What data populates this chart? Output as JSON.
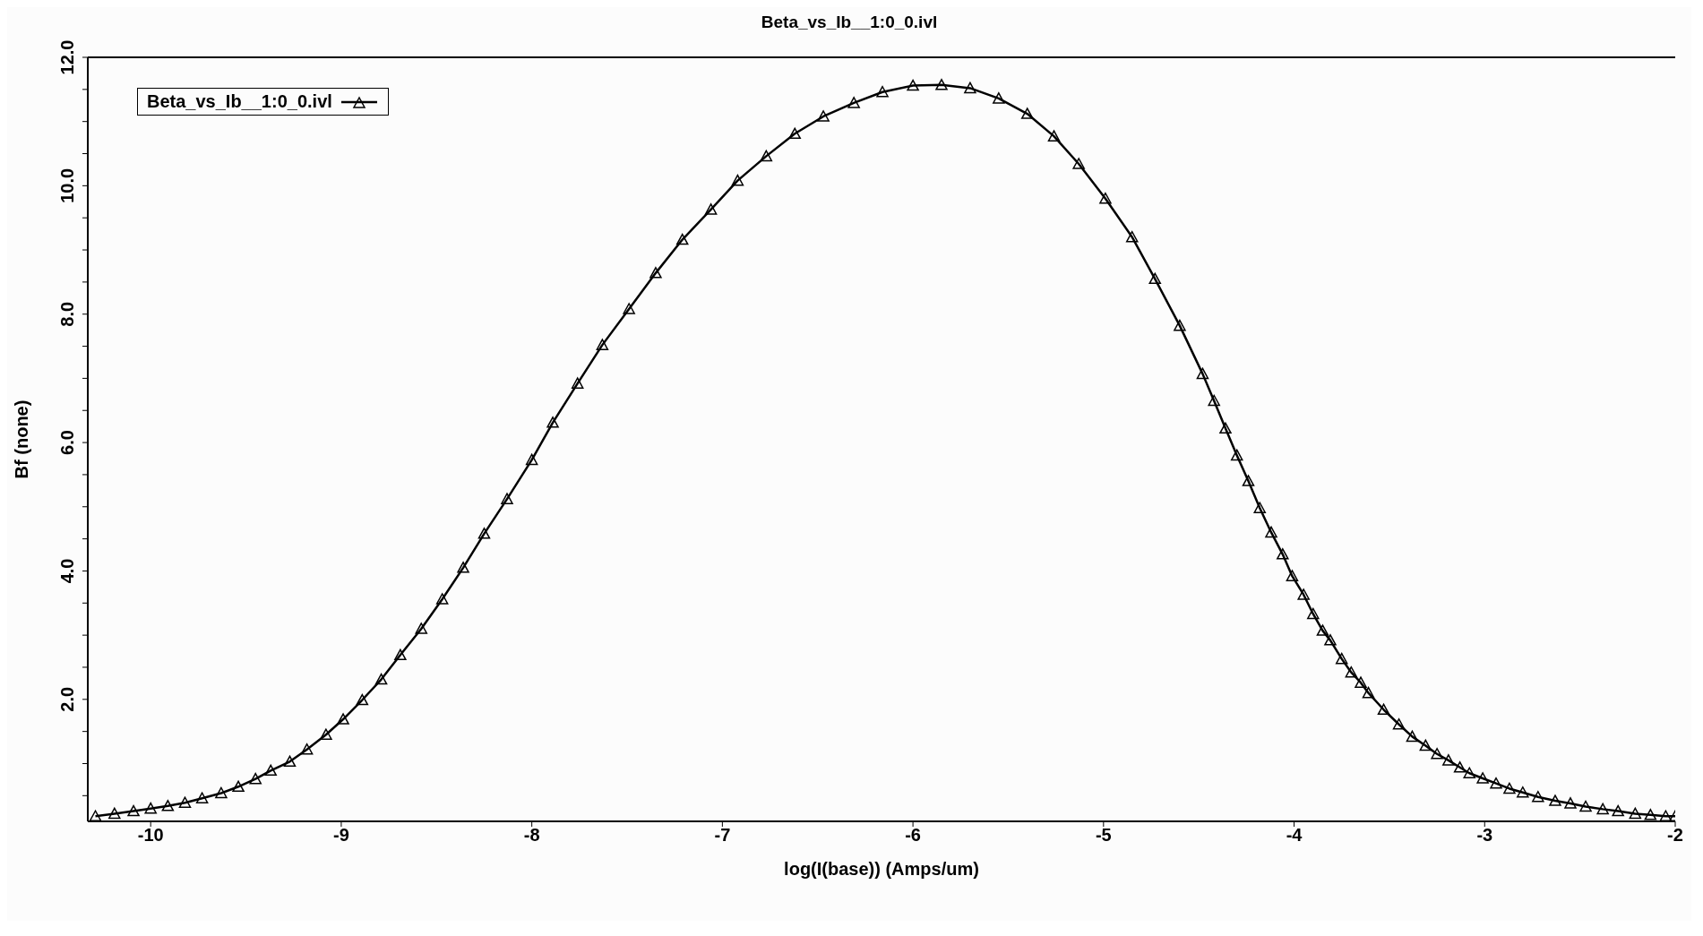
{
  "chart_data": {
    "type": "line",
    "title": "Beta_vs_Ib__1:0_0.ivl",
    "xlabel": "log(I(base)) (Amps/um)",
    "ylabel": "Bf (none)",
    "xlim": [
      -10.33,
      -2
    ],
    "xticks": [
      -10,
      -9,
      -8,
      -7,
      -6,
      -5,
      -4,
      -3,
      -2
    ],
    "ylim": [
      0.1,
      12
    ],
    "yticks": [
      {
        "value": 0.5,
        "label": null
      },
      {
        "value": 1,
        "label": null
      },
      {
        "value": 1.5,
        "label": null
      },
      {
        "value": 2,
        "label": "2.0"
      },
      {
        "value": 2.5,
        "label": null
      },
      {
        "value": 3,
        "label": null
      },
      {
        "value": 3.5,
        "label": null
      },
      {
        "value": 4,
        "label": "4.0"
      },
      {
        "value": 4.5,
        "label": null
      },
      {
        "value": 5,
        "label": null
      },
      {
        "value": 5.5,
        "label": null
      },
      {
        "value": 6,
        "label": "6.0"
      },
      {
        "value": 6.5,
        "label": null
      },
      {
        "value": 7,
        "label": null
      },
      {
        "value": 7.5,
        "label": null
      },
      {
        "value": 8,
        "label": "8.0"
      },
      {
        "value": 8.5,
        "label": null
      },
      {
        "value": 9,
        "label": null
      },
      {
        "value": 9.5,
        "label": null
      },
      {
        "value": 10,
        "label": "10.0"
      },
      {
        "value": 10.5,
        "label": null
      },
      {
        "value": 11,
        "label": null
      },
      {
        "value": 11.5,
        "label": null
      },
      {
        "value": 12,
        "label": "12.0"
      }
    ],
    "legend": "top left",
    "marker": "triangle",
    "line_style": "solid",
    "series": [
      {
        "name": "Beta_vs_Ib__1:0_0.ivl",
        "color": "#000000",
        "x": [
          -10.29,
          -10.19,
          -10.09,
          -10.0,
          -9.91,
          -9.82,
          -9.73,
          -9.63,
          -9.54,
          -9.45,
          -9.37,
          -9.27,
          -9.18,
          -9.08,
          -8.99,
          -8.89,
          -8.79,
          -8.69,
          -8.58,
          -8.47,
          -8.36,
          -8.25,
          -8.13,
          -8.0,
          -7.89,
          -7.76,
          -7.63,
          -7.49,
          -7.35,
          -7.21,
          -7.06,
          -6.92,
          -6.77,
          -6.62,
          -6.47,
          -6.31,
          -6.16,
          -6.0,
          -5.85,
          -5.7,
          -5.55,
          -5.4,
          -5.26,
          -5.13,
          -4.99,
          -4.85,
          -4.73,
          -4.6,
          -4.48,
          -4.42,
          -4.36,
          -4.3,
          -4.24,
          -4.18,
          -4.12,
          -4.06,
          -4.01,
          -3.95,
          -3.9,
          -3.85,
          -3.81,
          -3.75,
          -3.7,
          -3.65,
          -3.61,
          -3.53,
          -3.45,
          -3.38,
          -3.31,
          -3.25,
          -3.19,
          -3.13,
          -3.08,
          -3.01,
          -2.94,
          -2.87,
          -2.8,
          -2.72,
          -2.63,
          -2.55,
          -2.47,
          -2.38,
          -2.3,
          -2.21,
          -2.13,
          -2.05,
          -2.0
        ],
        "values": [
          0.18,
          0.22,
          0.26,
          0.3,
          0.34,
          0.39,
          0.46,
          0.54,
          0.64,
          0.76,
          0.89,
          1.03,
          1.22,
          1.45,
          1.69,
          1.99,
          2.31,
          2.69,
          3.1,
          3.56,
          4.05,
          4.58,
          5.12,
          5.73,
          6.31,
          6.92,
          7.52,
          8.08,
          8.64,
          9.16,
          9.63,
          10.08,
          10.46,
          10.81,
          11.08,
          11.29,
          11.46,
          11.56,
          11.57,
          11.52,
          11.36,
          11.12,
          10.77,
          10.34,
          9.8,
          9.2,
          8.55,
          7.82,
          7.07,
          6.65,
          6.22,
          5.8,
          5.4,
          4.98,
          4.6,
          4.26,
          3.92,
          3.63,
          3.33,
          3.07,
          2.92,
          2.63,
          2.42,
          2.26,
          2.1,
          1.84,
          1.61,
          1.42,
          1.28,
          1.15,
          1.05,
          0.94,
          0.85,
          0.77,
          0.69,
          0.61,
          0.55,
          0.48,
          0.42,
          0.38,
          0.33,
          0.29,
          0.26,
          0.22,
          0.2,
          0.18,
          0.18
        ]
      }
    ]
  }
}
